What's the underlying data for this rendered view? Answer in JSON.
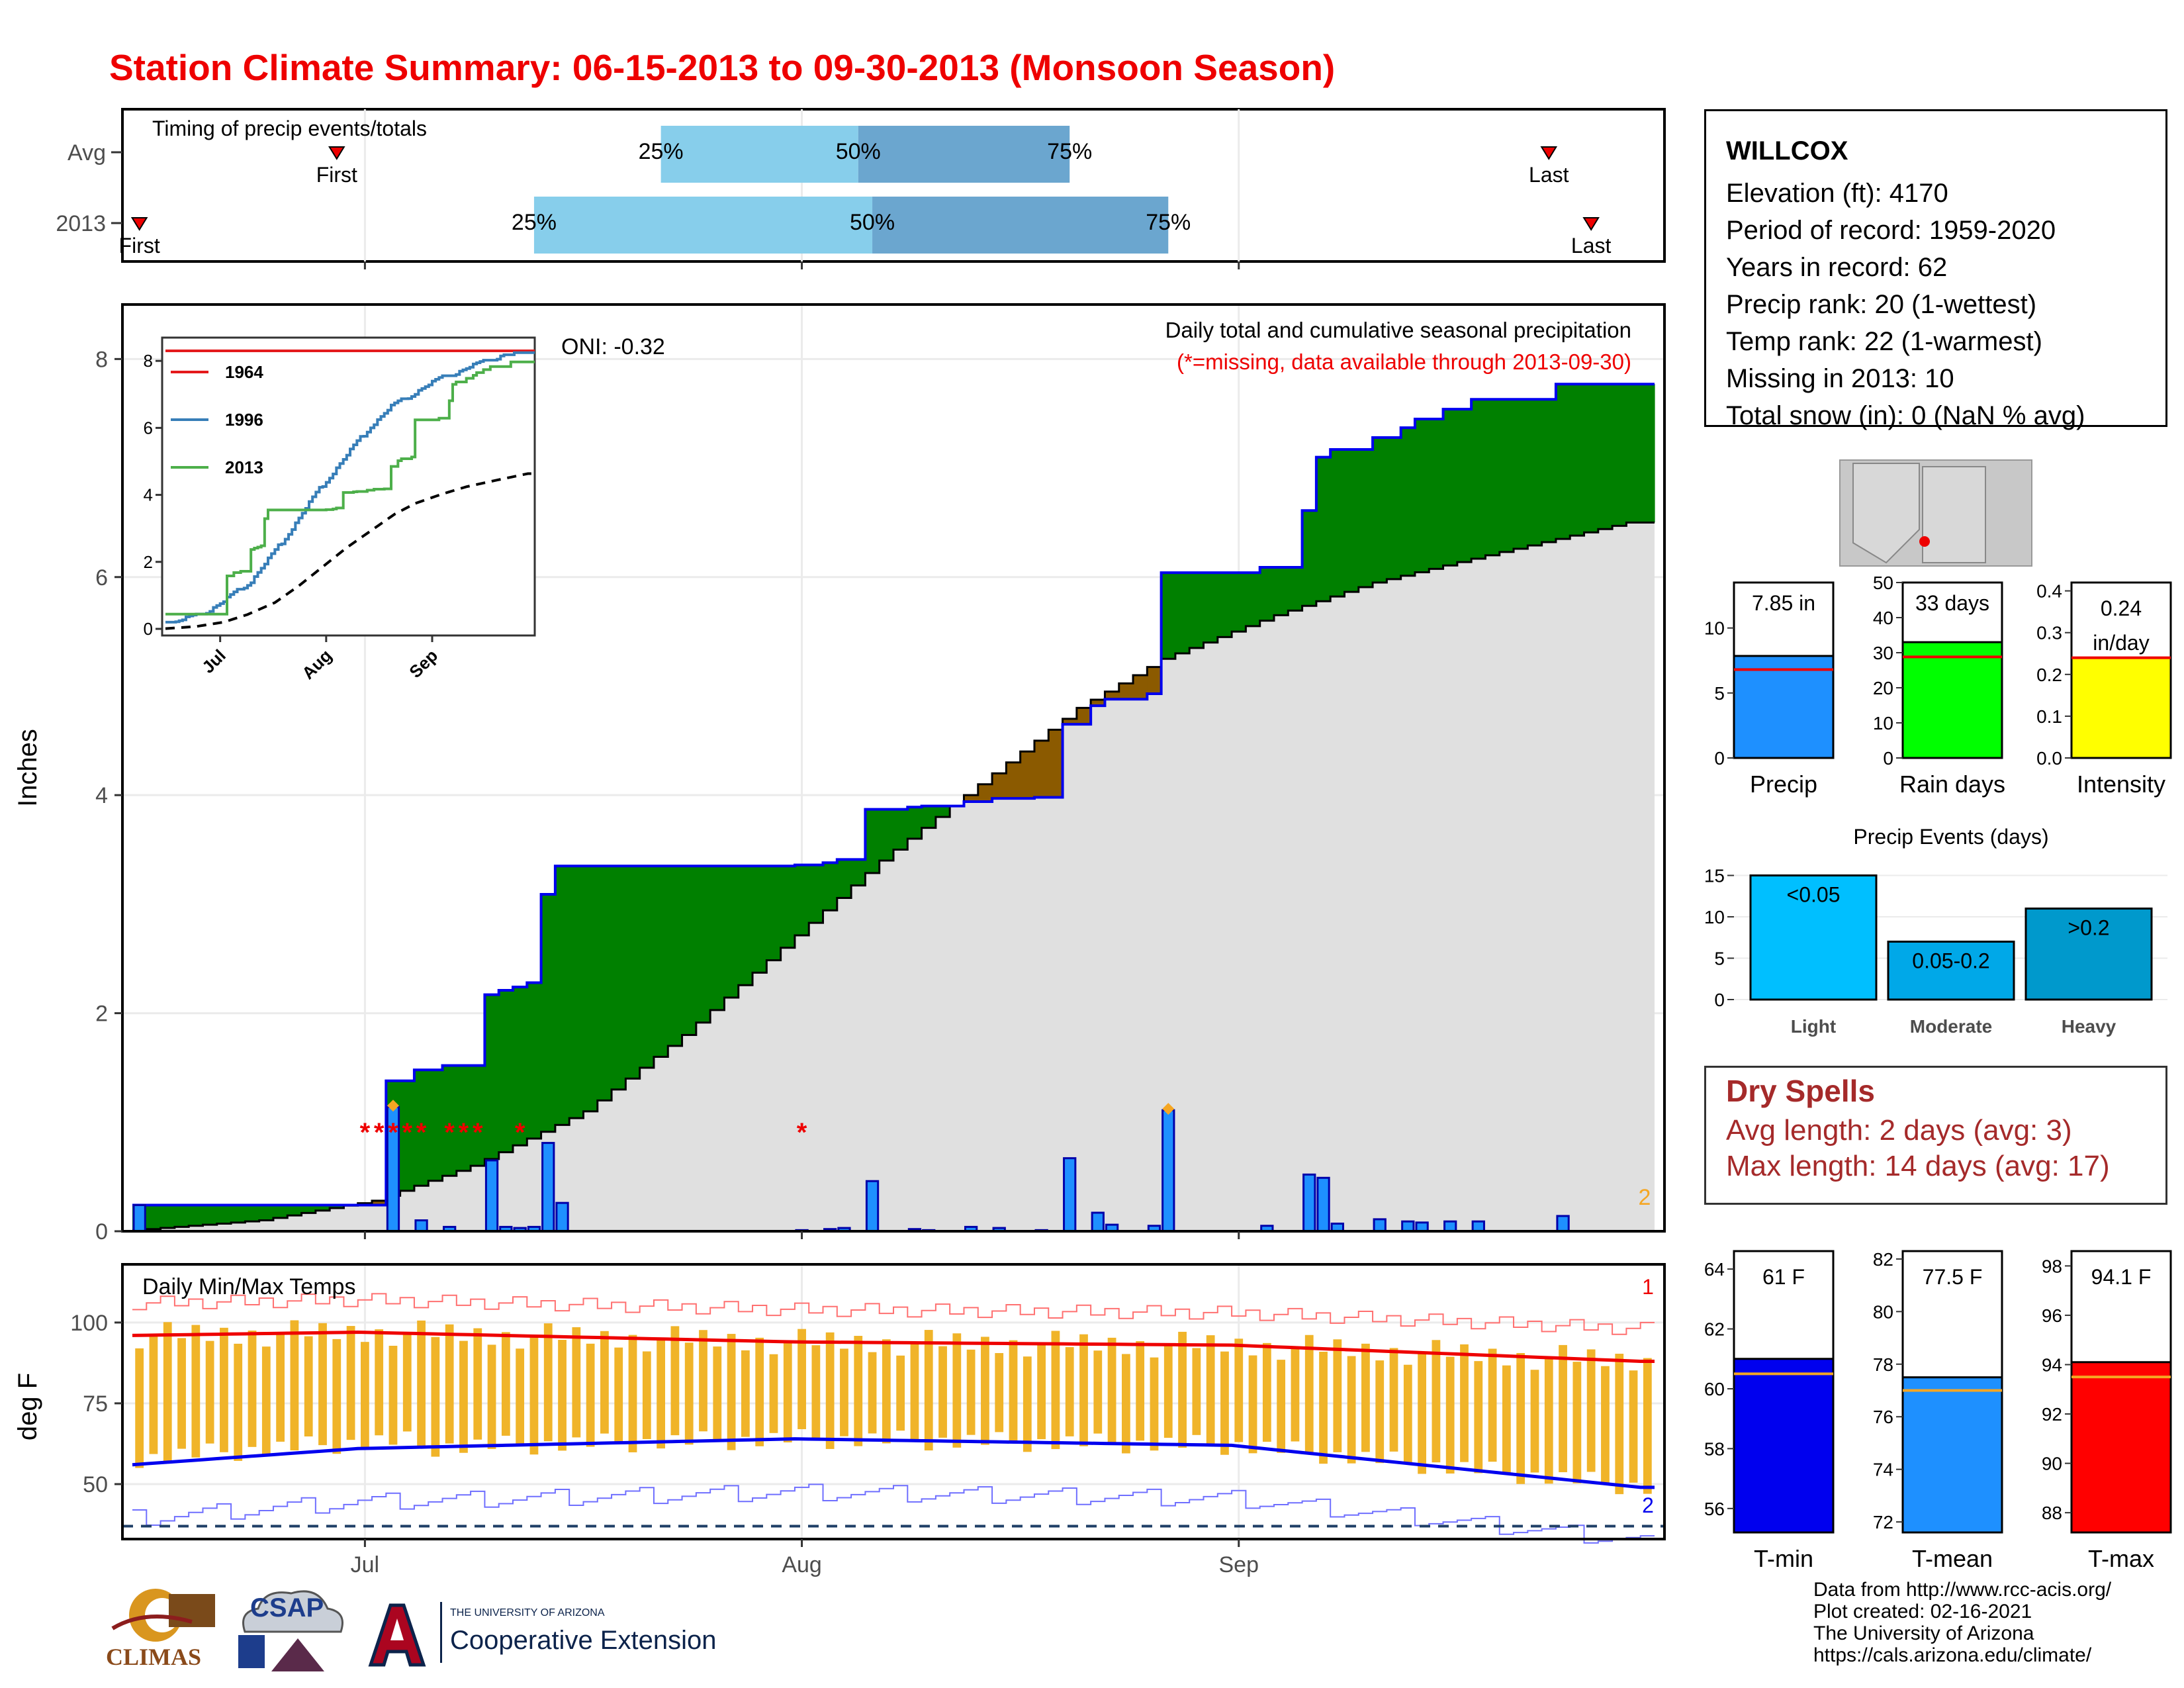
{
  "title": "Station Climate Summary: 06-15-2013 to 09-30-2013 (Monsoon Season)",
  "timing": {
    "label": "Timing of precip events/totals",
    "rows": [
      {
        "name": "Avg",
        "first_label": "First",
        "last_label": "Last",
        "first": "2013-06-29",
        "last": "2013-09-23",
        "q25": "2013-07-22",
        "q50": "2013-08-05",
        "q75": "2013-08-20"
      },
      {
        "name": "2013",
        "first_label": "First",
        "last_label": "Last",
        "first": "2013-06-15",
        "last": "2013-09-26",
        "q25": "2013-07-13",
        "q50": "2013-08-06",
        "q75": "2013-08-27"
      }
    ],
    "pct_labels": [
      "25%",
      "50%",
      "75%"
    ]
  },
  "station": {
    "name": "WILLCOX",
    "lines": [
      "Elevation (ft): 4170",
      "Period of record: 1959-2020",
      "Years in record: 62",
      "Precip rank: 20 (1-wettest)",
      "Temp rank: 22 (1-warmest)",
      "Missing in 2013: 10",
      "Total snow (in): 0 (NaN % avg)"
    ]
  },
  "main_chart": {
    "ylabel": "Inches",
    "annotation_title": "Daily total and cumulative seasonal precipitation",
    "annotation_missing": "(*=missing, data available through 2013-09-30)",
    "oni": "ONI: -0.32",
    "corner_note": "2",
    "colors": {
      "above": "#008000",
      "below": "#8b5a00",
      "avg_fill": "#e0e0e0",
      "obs_line": "#0000ee",
      "bar": "#1e90ff"
    }
  },
  "inset": {
    "legend": [
      "1964",
      "1996",
      "2013"
    ],
    "colors": [
      "#e41a1c",
      "#377eb8",
      "#4daf4a"
    ],
    "y_ticks": [
      "0",
      "2",
      "4",
      "6",
      "8"
    ],
    "x_ticks": [
      "Jul",
      "Aug",
      "Sep"
    ]
  },
  "summary_bars": [
    {
      "label": "Precip",
      "value_text": "7.85 in",
      "value": 7.85,
      "avg": 6.8,
      "ymax": 13.5,
      "ticks": [
        "0",
        "5",
        "10"
      ],
      "color": "#1e90ff"
    },
    {
      "label": "Rain days",
      "value_text": "33 days",
      "value": 33,
      "avg": 28.8,
      "ymax": 50,
      "ticks": [
        "0",
        "10",
        "20",
        "30",
        "40",
        "50"
      ],
      "color": "#00ff00"
    },
    {
      "label": "Intensity",
      "value_text": "0.24 in/day",
      "value": 0.24,
      "avg": 0.24,
      "ymax": 0.42,
      "ticks": [
        "0.0",
        "0.1",
        "0.2",
        "0.3",
        "0.4"
      ],
      "color": "#ffff00"
    }
  ],
  "events": {
    "title": "Precip Events (days)",
    "ticks": [
      "0",
      "5",
      "10",
      "15"
    ],
    "categories": [
      "Light",
      "Moderate",
      "Heavy"
    ],
    "labels": [
      "<0.05",
      "0.05-0.2",
      ">0.2"
    ],
    "values": [
      15,
      7,
      11
    ],
    "colors": [
      "#00bfff",
      "#00a8e8",
      "#0099cc"
    ]
  },
  "dry_spells": {
    "title": "Dry Spells",
    "avg": "Avg length: 2 days (avg: 3)",
    "max": "Max length: 14 days (avg: 17)"
  },
  "temps": {
    "label": "Daily Min/Max Temps",
    "ylabel": "deg F",
    "y_ticks": [
      "50",
      "75",
      "100"
    ],
    "x_ticks": [
      "Jul",
      "Aug",
      "Sep"
    ],
    "corner_top": "1",
    "corner_bottom": "2"
  },
  "temp_bars": [
    {
      "label": "T-min",
      "value_text": "61 F",
      "value": 61.0,
      "avg": 60.5,
      "ticks": [
        "56",
        "58",
        "60",
        "62",
        "64"
      ],
      "color": "#0000ee"
    },
    {
      "label": "T-mean",
      "value_text": "77.5 F",
      "value": 77.5,
      "avg": 77.0,
      "ticks": [
        "72",
        "74",
        "76",
        "78",
        "80",
        "82"
      ],
      "color": "#1e90ff"
    },
    {
      "label": "T-max",
      "value_text": "94.1 F",
      "value": 94.1,
      "avg": 93.5,
      "ticks": [
        "88",
        "90",
        "92",
        "94",
        "96",
        "98"
      ],
      "color": "#ff0000"
    }
  ],
  "credits": [
    "Data from http://www.rcc-acis.org/",
    "Plot created: 02-16-2021",
    "The University of Arizona",
    "https://cals.arizona.edu/climate/"
  ],
  "logos": {
    "climas": "CLIMAS",
    "csap": "CSAP",
    "ua_small": "THE UNIVERSITY OF ARIZONA",
    "ua_big": "Cooperative Extension"
  },
  "chart_data": {
    "type": "area",
    "title": "Station Climate Summary: 06-15-2013 to 09-30-2013 (Monsoon Season)",
    "ylabel": "Inches",
    "ylim": [
      0,
      8.5
    ],
    "x_range": [
      "2013-06-15",
      "2013-09-30"
    ],
    "x_ticks": [
      "Jul",
      "Aug",
      "Sep"
    ],
    "daily_precip": [
      {
        "date": "2013-06-15",
        "in": 0.24
      },
      {
        "date": "2013-07-03",
        "in": 1.14
      },
      {
        "date": "2013-07-05",
        "in": 0.1
      },
      {
        "date": "2013-07-07",
        "in": 0.04
      },
      {
        "date": "2013-07-10",
        "in": 0.65
      },
      {
        "date": "2013-07-11",
        "in": 0.04
      },
      {
        "date": "2013-07-12",
        "in": 0.03
      },
      {
        "date": "2013-07-13",
        "in": 0.04
      },
      {
        "date": "2013-07-14",
        "in": 0.81
      },
      {
        "date": "2013-07-15",
        "in": 0.26
      },
      {
        "date": "2013-08-01",
        "in": 0.01
      },
      {
        "date": "2013-08-03",
        "in": 0.02
      },
      {
        "date": "2013-08-04",
        "in": 0.03
      },
      {
        "date": "2013-08-06",
        "in": 0.46
      },
      {
        "date": "2013-08-09",
        "in": 0.02
      },
      {
        "date": "2013-08-10",
        "in": 0.01
      },
      {
        "date": "2013-08-13",
        "in": 0.04
      },
      {
        "date": "2013-08-15",
        "in": 0.03
      },
      {
        "date": "2013-08-18",
        "in": 0.01
      },
      {
        "date": "2013-08-20",
        "in": 0.67
      },
      {
        "date": "2013-08-22",
        "in": 0.17
      },
      {
        "date": "2013-08-23",
        "in": 0.06
      },
      {
        "date": "2013-08-26",
        "in": 0.05
      },
      {
        "date": "2013-08-27",
        "in": 1.11
      },
      {
        "date": "2013-09-03",
        "in": 0.05
      },
      {
        "date": "2013-09-06",
        "in": 0.52
      },
      {
        "date": "2013-09-07",
        "in": 0.49
      },
      {
        "date": "2013-09-08",
        "in": 0.07
      },
      {
        "date": "2013-09-11",
        "in": 0.11
      },
      {
        "date": "2013-09-13",
        "in": 0.09
      },
      {
        "date": "2013-09-14",
        "in": 0.08
      },
      {
        "date": "2013-09-16",
        "in": 0.09
      },
      {
        "date": "2013-09-18",
        "in": 0.09
      },
      {
        "date": "2013-09-24",
        "in": 0.14
      }
    ],
    "avg_cumulative": [
      {
        "date": "2013-06-15",
        "in": 0.0
      },
      {
        "date": "2013-06-25",
        "in": 0.1
      },
      {
        "date": "2013-07-03",
        "in": 0.28
      },
      {
        "date": "2013-07-10",
        "in": 0.6
      },
      {
        "date": "2013-07-18",
        "in": 1.1
      },
      {
        "date": "2013-07-25",
        "in": 1.8
      },
      {
        "date": "2013-08-01",
        "in": 2.6
      },
      {
        "date": "2013-08-08",
        "in": 3.4
      },
      {
        "date": "2013-08-15",
        "in": 4.1
      },
      {
        "date": "2013-08-22",
        "in": 4.8
      },
      {
        "date": "2013-08-28",
        "in": 5.25
      },
      {
        "date": "2013-09-05",
        "in": 5.65
      },
      {
        "date": "2013-09-12",
        "in": 5.95
      },
      {
        "date": "2013-09-20",
        "in": 6.2
      },
      {
        "date": "2013-09-30",
        "in": 6.5
      }
    ],
    "missing_dates": [
      "2013-07-01",
      "2013-07-02",
      "2013-07-03",
      "2013-07-04",
      "2013-07-05",
      "2013-07-07",
      "2013-07-08",
      "2013-07-09",
      "2013-07-12",
      "2013-08-01"
    ],
    "temp_mean_max": [
      {
        "date": "2013-06-15",
        "F": 96
      },
      {
        "date": "2013-07-01",
        "F": 97
      },
      {
        "date": "2013-08-01",
        "F": 94
      },
      {
        "date": "2013-09-01",
        "F": 93
      },
      {
        "date": "2013-09-30",
        "F": 88
      }
    ],
    "temp_mean_min": [
      {
        "date": "2013-06-15",
        "F": 56
      },
      {
        "date": "2013-07-01",
        "F": 61
      },
      {
        "date": "2013-08-01",
        "F": 64
      },
      {
        "date": "2013-09-01",
        "F": 62
      },
      {
        "date": "2013-09-30",
        "F": 49
      }
    ],
    "temp_ylim": [
      33,
      118
    ]
  }
}
